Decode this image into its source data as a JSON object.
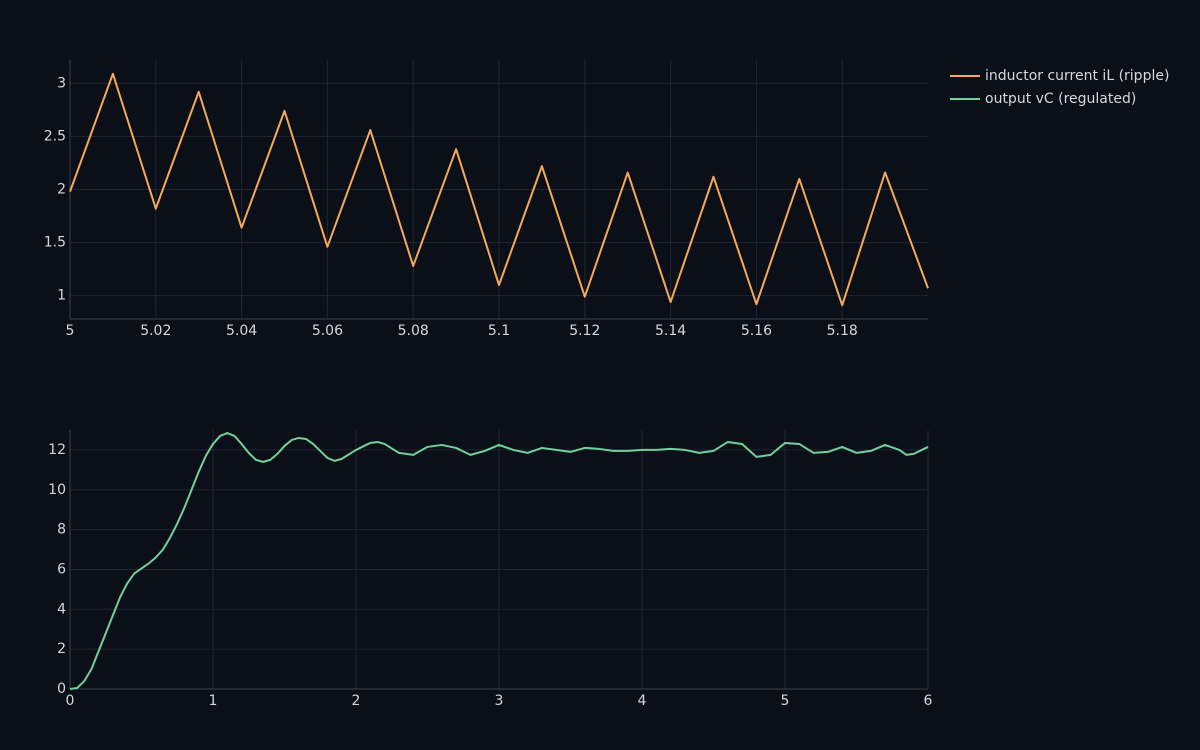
{
  "chart_data": [
    {
      "type": "line",
      "grid": true,
      "xlim": [
        5,
        5.2
      ],
      "ylim": [
        0.78,
        3.22
      ],
      "xticks": [
        5,
        5.02,
        5.04,
        5.06,
        5.08,
        5.1,
        5.12,
        5.14,
        5.16,
        5.18
      ],
      "yticks": [
        1,
        1.5,
        2,
        2.5,
        3
      ],
      "x": [
        5,
        5.01,
        5.02,
        5.03,
        5.04,
        5.05,
        5.06,
        5.07,
        5.08,
        5.09,
        5.1,
        5.11,
        5.12,
        5.13,
        5.14,
        5.15,
        5.16,
        5.17,
        5.18,
        5.19,
        5.2
      ],
      "series": [
        {
          "name": "inductor current iL (ripple)",
          "color": "#f5a95b",
          "values": [
            1.98,
            3.09,
            1.82,
            2.92,
            1.64,
            2.74,
            1.46,
            2.56,
            1.28,
            2.38,
            1.1,
            2.22,
            0.99,
            2.16,
            0.94,
            2.12,
            0.92,
            2.1,
            0.91,
            2.16,
            1.07
          ]
        }
      ]
    },
    {
      "type": "line",
      "grid": true,
      "xlim": [
        0,
        6
      ],
      "ylim": [
        0,
        13
      ],
      "xticks": [
        0,
        1,
        2,
        3,
        4,
        5,
        6
      ],
      "yticks": [
        0,
        2,
        4,
        6,
        8,
        10,
        12
      ],
      "x": [
        0,
        0.05,
        0.1,
        0.15,
        0.2,
        0.25,
        0.3,
        0.35,
        0.4,
        0.45,
        0.5,
        0.55,
        0.6,
        0.65,
        0.7,
        0.75,
        0.8,
        0.85,
        0.9,
        0.95,
        1,
        1.05,
        1.1,
        1.15,
        1.2,
        1.25,
        1.3,
        1.35,
        1.4,
        1.45,
        1.5,
        1.55,
        1.6,
        1.65,
        1.7,
        1.75,
        1.8,
        1.85,
        1.9,
        2,
        2.1,
        2.15,
        2.2,
        2.3,
        2.4,
        2.5,
        2.6,
        2.7,
        2.8,
        2.9,
        3,
        3.1,
        3.2,
        3.3,
        3.4,
        3.5,
        3.6,
        3.7,
        3.8,
        3.9,
        4,
        4.1,
        4.2,
        4.3,
        4.4,
        4.5,
        4.6,
        4.7,
        4.8,
        4.9,
        5,
        5.1,
        5.2,
        5.3,
        5.4,
        5.5,
        5.6,
        5.7,
        5.8,
        5.85,
        5.9,
        6
      ],
      "series": [
        {
          "name": "output vC (regulated)",
          "color": "#72d19a",
          "values": [
            0,
            0.05,
            0.4,
            1.0,
            1.9,
            2.8,
            3.7,
            4.6,
            5.3,
            5.8,
            6.05,
            6.3,
            6.6,
            7.0,
            7.6,
            8.3,
            9.1,
            10.0,
            10.9,
            11.7,
            12.3,
            12.7,
            12.85,
            12.7,
            12.3,
            11.85,
            11.5,
            11.4,
            11.5,
            11.8,
            12.2,
            12.5,
            12.6,
            12.55,
            12.3,
            11.95,
            11.6,
            11.45,
            11.55,
            12.0,
            12.35,
            12.4,
            12.3,
            11.85,
            11.75,
            12.15,
            12.25,
            12.1,
            11.75,
            11.95,
            12.25,
            12.0,
            11.85,
            12.1,
            12.0,
            11.9,
            12.1,
            12.05,
            11.95,
            11.95,
            12.0,
            12.0,
            12.05,
            12.0,
            11.85,
            11.95,
            12.4,
            12.3,
            11.65,
            11.75,
            12.35,
            12.3,
            11.85,
            11.9,
            12.15,
            11.85,
            11.95,
            12.25,
            12.0,
            11.75,
            11.8,
            12.15
          ]
        }
      ]
    }
  ]
}
